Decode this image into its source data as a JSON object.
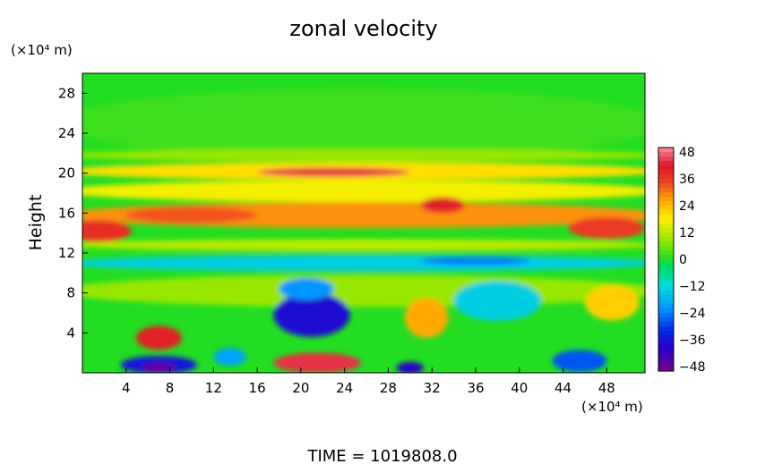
{
  "chart_data": {
    "type": "heatmap",
    "title": "zonal velocity",
    "ylabel": "Height",
    "y_unit": "(×10⁴ m)",
    "x_unit": "(×10⁴ m)",
    "xlim": [
      0,
      51.5
    ],
    "ylim": [
      0,
      30
    ],
    "x_ticks": [
      4,
      8,
      12,
      16,
      20,
      24,
      28,
      32,
      36,
      40,
      44,
      48
    ],
    "y_ticks": [
      4,
      8,
      12,
      16,
      20,
      24,
      28
    ],
    "colorbar": {
      "ticks": [
        48,
        36,
        24,
        12,
        0,
        -12,
        -24,
        -36,
        -48
      ],
      "range": [
        -50,
        50
      ]
    },
    "features": [
      {
        "x": 25.5,
        "y": 25,
        "w": 55,
        "h": 7,
        "v": 2
      },
      {
        "x": 25.5,
        "y": 21.8,
        "w": 55,
        "h": 1.3,
        "v": 9
      },
      {
        "x": 25.5,
        "y": 20.2,
        "w": 55,
        "h": 1.8,
        "v": 20
      },
      {
        "x": 23,
        "y": 20.1,
        "w": 14,
        "h": 0.9,
        "v": 44
      },
      {
        "x": 25.5,
        "y": 18.2,
        "w": 55,
        "h": 2.2,
        "v": 17
      },
      {
        "x": 25.5,
        "y": 15.8,
        "w": 55,
        "h": 2.6,
        "v": 28
      },
      {
        "x": 1.5,
        "y": 14.2,
        "w": 6,
        "h": 2.2,
        "v": 38
      },
      {
        "x": 10,
        "y": 15.8,
        "w": 12,
        "h": 1.6,
        "v": 33
      },
      {
        "x": 33,
        "y": 16.8,
        "w": 4,
        "h": 1.6,
        "v": 40
      },
      {
        "x": 48,
        "y": 14.5,
        "w": 7,
        "h": 2.2,
        "v": 36
      },
      {
        "x": 25.5,
        "y": 12.8,
        "w": 55,
        "h": 1.2,
        "v": 12
      },
      {
        "x": 25.5,
        "y": 11.0,
        "w": 55,
        "h": 1.6,
        "v": -14
      },
      {
        "x": 36,
        "y": 11.2,
        "w": 10,
        "h": 0.9,
        "v": -24
      },
      {
        "x": 25.5,
        "y": 8.2,
        "w": 55,
        "h": 3.2,
        "v": 9
      },
      {
        "x": 21,
        "y": 5.8,
        "w": 7,
        "h": 4.4,
        "v": -38
      },
      {
        "x": 20.5,
        "y": 8.4,
        "w": 5,
        "h": 2.2,
        "v": -22
      },
      {
        "x": 31.5,
        "y": 5.5,
        "w": 4,
        "h": 4,
        "v": 26
      },
      {
        "x": 38,
        "y": 7.2,
        "w": 8,
        "h": 4,
        "v": -14
      },
      {
        "x": 48.5,
        "y": 7,
        "w": 5,
        "h": 3.5,
        "v": 22
      },
      {
        "x": 7,
        "y": 3.5,
        "w": 4.2,
        "h": 2.4,
        "v": 40
      },
      {
        "x": 7,
        "y": 0.8,
        "w": 7,
        "h": 1.8,
        "v": -36
      },
      {
        "x": 7,
        "y": 0.5,
        "w": 3,
        "h": 0.9,
        "v": -48
      },
      {
        "x": 21.5,
        "y": 1.0,
        "w": 8,
        "h": 2.0,
        "v": 44
      },
      {
        "x": 30,
        "y": 0.5,
        "w": 2.5,
        "h": 1.2,
        "v": -40
      },
      {
        "x": 45.5,
        "y": 1.2,
        "w": 5,
        "h": 2.2,
        "v": -28
      },
      {
        "x": 13.5,
        "y": 1.6,
        "w": 3,
        "h": 1.8,
        "v": -20
      }
    ]
  },
  "footer": {
    "time_label": "TIME  =  1019808.0"
  }
}
